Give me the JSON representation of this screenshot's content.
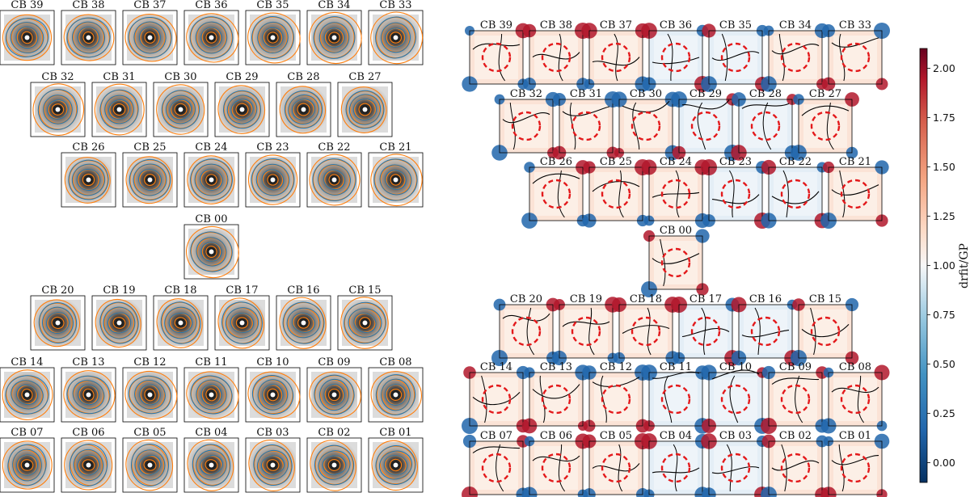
{
  "left_panels": {
    "rows": [
      [
        "CB 39",
        "CB 38",
        "CB 37",
        "CB 36",
        "CB 35",
        "CB 34",
        "CB 33"
      ],
      [
        "CB 32",
        "CB 31",
        "CB 30",
        "CB 29",
        "CB 28",
        "CB 27"
      ],
      [
        "CB 26",
        "CB 25",
        "CB 24",
        "CB 23",
        "CB 22",
        "CB 21"
      ],
      [
        "CB 00"
      ],
      [
        "CB 20",
        "CB 19",
        "CB 18",
        "CB 17",
        "CB 16",
        "CB 15"
      ],
      [
        "CB 14",
        "CB 13",
        "CB 12",
        "CB 11",
        "CB 10",
        "CB 09",
        "CB 08"
      ],
      [
        "CB 07",
        "CB 06",
        "CB 05",
        "CB 04",
        "CB 03",
        "CB 02",
        "CB 01"
      ]
    ]
  },
  "right_panels": {
    "rows": [
      [
        "CB 39",
        "CB 38",
        "CB 37",
        "CB 36",
        "CB 35",
        "CB 34",
        "CB 33"
      ],
      [
        "CB 32",
        "CB 31",
        "CB 30",
        "CB 29",
        "CB 28",
        "CB 27"
      ],
      [
        "CB 26",
        "CB 25",
        "CB 24",
        "CB 23",
        "CB 22",
        "CB 21"
      ],
      [
        "CB 00"
      ],
      [
        "CB 20",
        "CB 19",
        "CB 18",
        "CB 17",
        "CB 16",
        "CB 15"
      ],
      [
        "CB 14",
        "CB 13",
        "CB 12",
        "CB 11",
        "CB 10",
        "CB 09",
        "CB 08"
      ],
      [
        "CB 07",
        "CB 06",
        "CB 05",
        "CB 04",
        "CB 03",
        "CB 02",
        "CB 01"
      ]
    ]
  },
  "chart_data": {
    "type": "heatmap",
    "colorbar": {
      "label": "drfit/GP",
      "range": [
        -0.1,
        2.1
      ],
      "ticks": [
        "0.00",
        "0.25",
        "0.50",
        "0.75",
        "1.00",
        "1.25",
        "1.50",
        "1.75",
        "2.00"
      ],
      "tick_values": [
        0.0,
        0.25,
        0.5,
        0.75,
        1.0,
        1.25,
        1.5,
        1.75,
        2.0
      ],
      "colormap": "RdBu_r"
    },
    "colors": {
      "contour_orange": "#ff7f0e",
      "contour_blue": "#1f77b4",
      "reference_circle": "#e31a1c",
      "contour_black": "#000000"
    }
  }
}
